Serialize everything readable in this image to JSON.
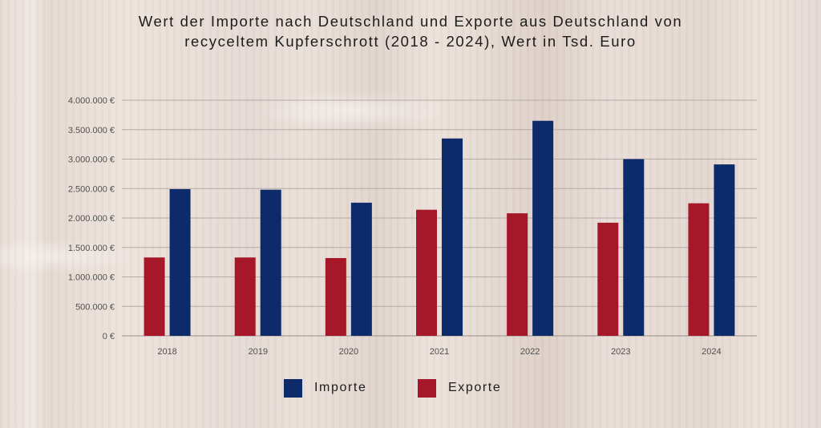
{
  "title_line1": "Wert der Importe nach Deutschland und Exporte aus Deutschland von",
  "title_line2": "recyceltem Kupferschrott (2018 - 2024), Wert in Tsd. Euro",
  "colors": {
    "importe": "#0d2a6b",
    "exporte": "#a51729"
  },
  "chart_data": {
    "type": "bar",
    "title": "Wert der Importe nach Deutschland und Exporte aus Deutschland von recyceltem Kupferschrott (2018 - 2024), Wert in Tsd. Euro",
    "xlabel": "",
    "ylabel": "",
    "categories": [
      "2018",
      "2019",
      "2020",
      "2021",
      "2022",
      "2023",
      "2024"
    ],
    "series": [
      {
        "name": "Exporte",
        "values": [
          1330000,
          1330000,
          1320000,
          2140000,
          2080000,
          1920000,
          2250000
        ]
      },
      {
        "name": "Importe",
        "values": [
          2490000,
          2480000,
          2260000,
          3350000,
          3650000,
          3000000,
          2910000
        ]
      }
    ],
    "ylim": [
      0,
      4000000
    ],
    "y_ticks": [
      {
        "value": 0,
        "label": "0 €"
      },
      {
        "value": 500000,
        "label": "500.000 €"
      },
      {
        "value": 1000000,
        "label": "1.000.000 €"
      },
      {
        "value": 1500000,
        "label": "1.500.000 €"
      },
      {
        "value": 2000000,
        "label": "2.000.000 €"
      },
      {
        "value": 2500000,
        "label": "2.500.000 €"
      },
      {
        "value": 3000000,
        "label": "3.000.000 €"
      },
      {
        "value": 3500000,
        "label": "3.500.000 €"
      },
      {
        "value": 4000000,
        "label": "4.000.000 €"
      }
    ],
    "grid": true,
    "legend": {
      "placement": "bottom-center",
      "items": [
        {
          "label": "Importe",
          "color": "#0d2a6b"
        },
        {
          "label": "Exporte",
          "color": "#a51729"
        }
      ]
    }
  }
}
